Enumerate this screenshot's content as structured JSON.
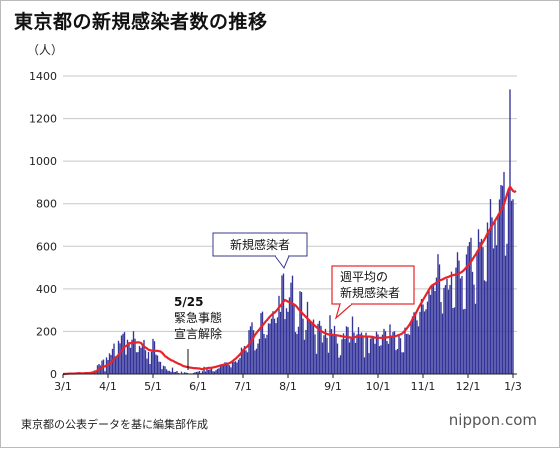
{
  "title": "東京都の新規感染者数の推移",
  "unit_label": "（人）",
  "source": "東京都の公表データを基に編集部作成",
  "logo": {
    "prefix": "nippon",
    "dot": ".",
    "suffix": "com"
  },
  "colors": {
    "bar": "#34339a",
    "line": "#e8232a",
    "grid": "#c8c8c8"
  },
  "chart_data": {
    "type": "bar",
    "xlabel": "",
    "ylabel": "（人）",
    "ylim": [
      0,
      1400
    ],
    "yticks": [
      0,
      200,
      400,
      600,
      800,
      1000,
      1200,
      1400
    ],
    "xticks": [
      "3/1",
      "4/1",
      "5/1",
      "6/1",
      "7/1",
      "8/1",
      "9/1",
      "10/1",
      "11/1",
      "12/1",
      "1/3"
    ],
    "grid": true,
    "daily_x_start": "3/1",
    "daily_x_end": "1/3",
    "series": [
      {
        "name": "新規感染者",
        "type": "bar",
        "values": [
          0,
          0,
          2,
          1,
          3,
          1,
          2,
          4,
          5,
          2,
          3,
          4,
          3,
          2,
          1,
          4,
          6,
          3,
          7,
          8,
          11,
          17,
          16,
          41,
          47,
          40,
          63,
          68,
          13,
          78,
          66,
          97,
          89,
          118,
          143,
          83,
          80,
          156,
          144,
          181,
          189,
          197,
          91,
          161,
          149,
          123,
          161,
          201,
          166,
          102,
          103,
          132,
          123,
          134,
          160,
          112,
          72,
          104,
          47,
          104,
          165,
          154,
          91,
          87,
          58,
          57,
          23,
          39,
          36,
          22,
          15,
          15,
          10,
          30,
          9,
          10,
          14,
          5,
          2,
          11,
          3,
          8,
          7,
          5,
          2,
          3,
          2,
          5,
          8,
          10,
          11,
          14,
          5,
          13,
          34,
          12,
          28,
          20,
          22,
          26,
          13,
          12,
          18,
          24,
          27,
          35,
          47,
          48,
          55,
          54,
          48,
          41,
          31,
          58,
          57,
          60,
          54,
          67,
          75,
          124,
          107,
          131,
          111,
          102,
          206,
          224,
          243,
          206,
          111,
          119,
          143,
          165,
          286,
          293,
          188,
          168,
          184,
          238,
          237,
          260,
          295,
          260,
          239,
          266,
          367,
          292,
          463,
          472,
          258,
          309,
          292,
          360,
          429,
          462,
          331,
          197,
          188,
          222,
          389,
          385,
          260,
          161,
          207,
          339,
          258,
          248,
          236,
          256,
          186,
          95,
          236,
          250,
          226,
          148,
          182,
          212,
          170,
          100,
          276,
          211,
          187,
          226,
          181,
          143,
          77,
          88,
          163,
          191,
          165,
          224,
          220,
          148,
          168,
          270,
          195,
          146,
          186,
          220,
          187,
          195,
          181,
          78,
          194,
          176,
          98,
          166,
          177,
          173,
          142,
          199,
          186,
          131,
          135,
          185,
          212,
          201,
          155,
          142,
          233,
          181,
          197,
          201,
          112,
          118,
          185,
          168,
          102,
          102,
          218,
          188,
          189,
          184,
          245,
          271,
          290,
          290,
          252,
          224,
          292,
          352,
          327,
          294,
          304,
          340,
          390,
          372,
          418,
          420,
          390,
          453,
          563,
          515,
          338,
          284,
          405,
          418,
          447,
          396,
          418,
          481,
          310,
          313,
          500,
          572,
          533,
          449,
          460,
          304,
          306,
          562,
          600,
          620,
          640,
          480,
          420,
          330,
          580,
          680,
          620,
          635,
          596,
          440,
          435,
          712,
          678,
          822,
          736,
          590,
          720,
          605,
          750,
          820,
          888,
          884,
          949,
          556,
          612,
          858,
          1337,
          814,
          821
        ]
      },
      {
        "name": "週平均の新規感染者",
        "type": "line",
        "values": [
          0,
          0,
          1,
          1,
          2,
          2,
          2,
          2,
          2,
          3,
          3,
          4,
          3,
          3,
          3,
          4,
          4,
          4,
          5,
          6,
          8,
          10,
          12,
          17,
          22,
          26,
          31,
          36,
          36,
          40,
          43,
          47,
          53,
          61,
          72,
          77,
          82,
          90,
          98,
          107,
          117,
          128,
          131,
          136,
          144,
          145,
          145,
          146,
          148,
          148,
          149,
          148,
          146,
          137,
          130,
          124,
          120,
          114,
          112,
          110,
          108,
          109,
          109,
          109,
          107,
          106,
          100,
          93,
          84,
          80,
          74,
          70,
          65,
          63,
          59,
          55,
          52,
          48,
          46,
          42,
          38,
          36,
          34,
          33,
          31,
          30,
          29,
          28,
          27,
          27,
          26,
          26,
          24,
          22,
          24,
          26,
          27,
          29,
          29,
          29,
          31,
          32,
          34,
          36,
          38,
          40,
          42,
          43,
          45,
          46,
          49,
          51,
          55,
          60,
          66,
          71,
          78,
          85,
          92,
          101,
          110,
          118,
          125,
          130,
          140,
          148,
          160,
          172,
          184,
          193,
          202,
          210,
          220,
          228,
          236,
          246,
          253,
          262,
          270,
          277,
          283,
          288,
          295,
          303,
          313,
          320,
          331,
          340,
          348,
          344,
          340,
          337,
          333,
          330,
          327,
          322,
          315,
          305,
          297,
          290,
          282,
          275,
          268,
          260,
          254,
          246,
          240,
          233,
          226,
          220,
          214,
          208,
          203,
          198,
          194,
          191,
          188,
          186,
          185,
          185,
          184,
          183,
          182,
          181,
          180,
          179,
          177,
          176,
          175,
          174,
          173,
          172,
          171,
          170,
          172,
          174,
          176,
          177,
          178,
          178,
          177,
          176,
          176,
          176,
          176,
          175,
          175,
          173,
          171,
          170,
          170,
          170,
          170,
          170,
          171,
          172,
          172,
          173,
          174,
          175,
          175,
          176,
          178,
          181,
          183,
          186,
          190,
          196,
          204,
          212,
          222,
          232,
          244,
          257,
          270,
          282,
          296,
          310,
          323,
          335,
          348,
          360,
          372,
          384,
          396,
          408,
          416,
          420,
          424,
          430,
          436,
          440,
          442,
          444,
          448,
          452,
          454,
          456,
          460,
          462,
          464,
          466,
          468,
          470,
          472,
          476,
          480,
          486,
          494,
          502,
          510,
          518,
          528,
          538,
          550,
          560,
          572,
          584,
          596,
          608,
          620,
          632,
          646,
          660,
          672,
          684,
          696,
          708,
          720,
          732,
          744,
          756,
          768,
          780,
          798,
          820,
          844,
          866,
          880,
          870,
          860,
          856,
          860
        ]
      }
    ],
    "annotations": [
      {
        "id": "ann_bars",
        "lines": [
          "新規感染者"
        ]
      },
      {
        "id": "ann_line",
        "lines": [
          "週平均の",
          "新規感染者"
        ]
      },
      {
        "id": "ann_event",
        "lines": [
          "5/25",
          "緊急事態",
          "宣言解除"
        ]
      }
    ]
  }
}
